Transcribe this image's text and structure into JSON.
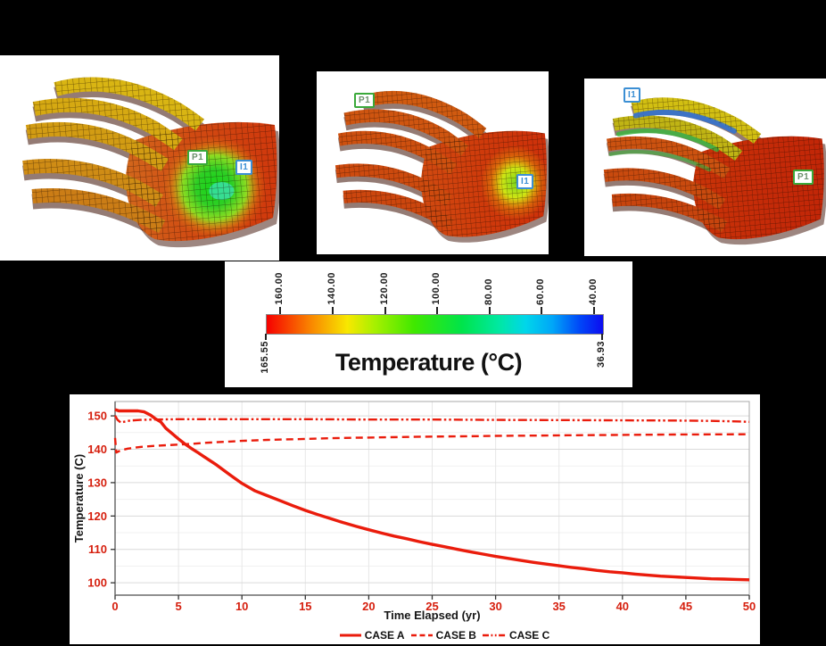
{
  "colors": {
    "curve_red": "#ea1c0c",
    "tick_label_red": "#d6200f",
    "producer_green": "#3aa93a",
    "injector_blue": "#3c8fd4",
    "background": "#000000",
    "panel_background": "#ffffff"
  },
  "models": [
    {
      "name": "reservoir-model-1",
      "well_labels": [
        {
          "text": "P1",
          "type": "producer"
        },
        {
          "text": "I1",
          "type": "injector"
        }
      ]
    },
    {
      "name": "reservoir-model-2",
      "well_labels": [
        {
          "text": "P1",
          "type": "producer"
        },
        {
          "text": "I1",
          "type": "injector"
        }
      ]
    },
    {
      "name": "reservoir-model-3",
      "well_labels": [
        {
          "text": "I1",
          "type": "injector"
        },
        {
          "text": "P1",
          "type": "producer"
        }
      ]
    }
  ],
  "colorbar": {
    "title": "Temperature (°C)",
    "ticks": [
      "160.00",
      "140.00",
      "120.00",
      "100.00",
      "80.00",
      "60.00",
      "40.00"
    ],
    "left_label": "165.55",
    "right_label": "36.93",
    "gradient_stops": [
      {
        "c": "#f60000",
        "p": 0
      },
      {
        "c": "#f98500",
        "p": 13
      },
      {
        "c": "#f8e800",
        "p": 24
      },
      {
        "c": "#a8f000",
        "p": 32
      },
      {
        "c": "#3fe800",
        "p": 44
      },
      {
        "c": "#00e44a",
        "p": 58
      },
      {
        "c": "#00e8a2",
        "p": 69
      },
      {
        "c": "#00d6ea",
        "p": 77
      },
      {
        "c": "#00a6f8",
        "p": 85
      },
      {
        "c": "#0048f8",
        "p": 93
      },
      {
        "c": "#0d0cf0",
        "p": 100
      }
    ]
  },
  "chart_data": {
    "type": "line",
    "title": "",
    "xlabel": "Time Elapsed (yr)",
    "ylabel": "Temperature (C)",
    "xlim": [
      0,
      50
    ],
    "ylim": [
      96.3,
      154.3
    ],
    "xticks": [
      "0",
      "5",
      "10",
      "15",
      "20",
      "25",
      "30",
      "35",
      "40",
      "45",
      "50"
    ],
    "yticks": [
      "100",
      "110",
      "120",
      "130",
      "140",
      "150"
    ],
    "grid": true,
    "legend_position": "bottom",
    "series": [
      {
        "name": "CASE A",
        "style": "solid",
        "color": "#ea1c0c",
        "points": [
          [
            0,
            151.9
          ],
          [
            0.3,
            151.5
          ],
          [
            1,
            151.5
          ],
          [
            1.8,
            151.5
          ],
          [
            2.3,
            151.2
          ],
          [
            2.8,
            150.2
          ],
          [
            3.2,
            149.1
          ],
          [
            3.6,
            148.2
          ],
          [
            4,
            146.3
          ],
          [
            4.5,
            144.7
          ],
          [
            5,
            143.1
          ],
          [
            5.5,
            141.6
          ],
          [
            6,
            140.3
          ],
          [
            6.5,
            139.1
          ],
          [
            7,
            137.8
          ],
          [
            8,
            135.3
          ],
          [
            9,
            132.5
          ],
          [
            10,
            129.8
          ],
          [
            11,
            127.6
          ],
          [
            12,
            126.1
          ],
          [
            13,
            124.6
          ],
          [
            14,
            123.1
          ],
          [
            15,
            121.7
          ],
          [
            16,
            120.4
          ],
          [
            17,
            119.2
          ],
          [
            18,
            118.0
          ],
          [
            19,
            116.9
          ],
          [
            20,
            115.9
          ],
          [
            21,
            114.9
          ],
          [
            22,
            114.0
          ],
          [
            23,
            113.2
          ],
          [
            24,
            112.3
          ],
          [
            25,
            111.5
          ],
          [
            26,
            110.8
          ],
          [
            27,
            110.0
          ],
          [
            28,
            109.3
          ],
          [
            29,
            108.6
          ],
          [
            30,
            107.9
          ],
          [
            31,
            107.3
          ],
          [
            32,
            106.7
          ],
          [
            33,
            106.1
          ],
          [
            34,
            105.6
          ],
          [
            35,
            105.1
          ],
          [
            36,
            104.6
          ],
          [
            37,
            104.2
          ],
          [
            38,
            103.7
          ],
          [
            39,
            103.3
          ],
          [
            40,
            103.0
          ],
          [
            41,
            102.6
          ],
          [
            42,
            102.3
          ],
          [
            43,
            102.0
          ],
          [
            44,
            101.8
          ],
          [
            45,
            101.6
          ],
          [
            46,
            101.4
          ],
          [
            47,
            101.2
          ],
          [
            48,
            101.1
          ],
          [
            49,
            101.0
          ],
          [
            50,
            100.9
          ]
        ]
      },
      {
        "name": "CASE B",
        "style": "dashed",
        "color": "#ea1c0c",
        "points": [
          [
            0,
            143.4
          ],
          [
            0.1,
            139.0
          ],
          [
            0.4,
            139.6
          ],
          [
            1,
            140.2
          ],
          [
            2,
            140.7
          ],
          [
            3,
            141.0
          ],
          [
            4,
            141.2
          ],
          [
            5,
            141.4
          ],
          [
            6,
            141.6
          ],
          [
            7,
            141.9
          ],
          [
            8,
            142.1
          ],
          [
            9,
            142.3
          ],
          [
            10,
            142.5
          ],
          [
            12,
            142.8
          ],
          [
            14,
            143.0
          ],
          [
            16,
            143.2
          ],
          [
            18,
            143.4
          ],
          [
            20,
            143.5
          ],
          [
            23,
            143.7
          ],
          [
            25,
            143.8
          ],
          [
            28,
            143.9
          ],
          [
            30,
            144.0
          ],
          [
            33,
            144.1
          ],
          [
            36,
            144.2
          ],
          [
            40,
            144.3
          ],
          [
            44,
            144.4
          ],
          [
            50,
            144.5
          ]
        ]
      },
      {
        "name": "CASE C",
        "style": "dash-dot-dot",
        "color": "#ea1c0c",
        "points": [
          [
            0,
            150.1
          ],
          [
            0.2,
            148.8
          ],
          [
            0.45,
            148.0
          ],
          [
            0.8,
            148.3
          ],
          [
            1.2,
            148.6
          ],
          [
            2,
            148.8
          ],
          [
            3,
            148.9
          ],
          [
            5,
            149.0
          ],
          [
            10,
            149.0
          ],
          [
            15,
            149.0
          ],
          [
            20,
            148.9
          ],
          [
            25,
            148.9
          ],
          [
            30,
            148.8
          ],
          [
            35,
            148.75
          ],
          [
            40,
            148.65
          ],
          [
            44,
            148.6
          ],
          [
            47,
            148.5
          ],
          [
            49,
            148.35
          ],
          [
            50,
            148.2
          ]
        ]
      }
    ]
  }
}
